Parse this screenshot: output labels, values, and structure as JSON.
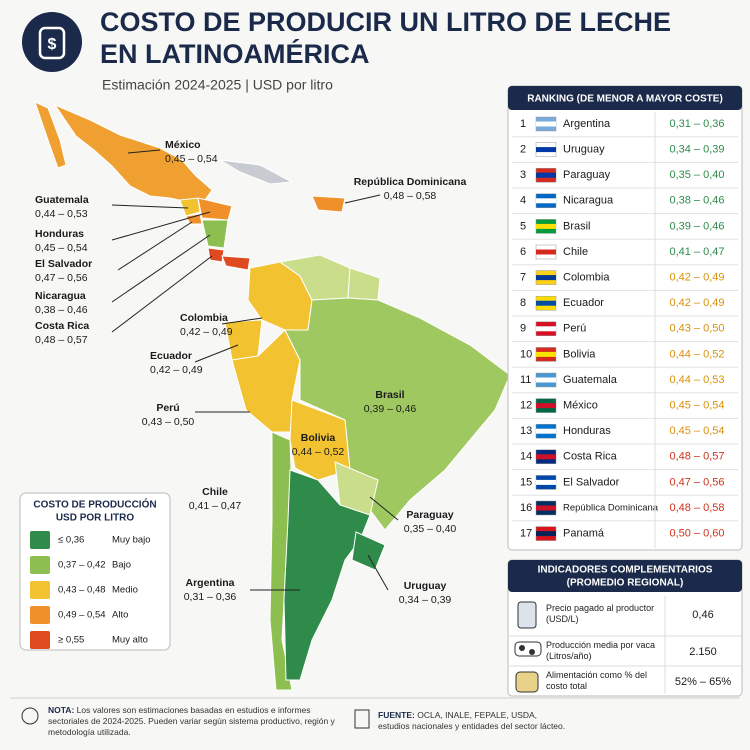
{
  "header": {
    "title_line1": "COSTO DE PRODUCIR UN LITRO DE LECHE",
    "title_line2": "EN LATINOAMÉRICA",
    "subtitle": "Estimación 2024-2025  |  USD por litro"
  },
  "map_labels": [
    {
      "name": "México",
      "range": "0,45 – 0,54"
    },
    {
      "name": "República Dominicana",
      "range": "0,48 – 0,58"
    },
    {
      "name": "Guatemala",
      "range": "0,44 – 0,53"
    },
    {
      "name": "Honduras",
      "range": "0,45 – 0,54"
    },
    {
      "name": "El Salvador",
      "range": "0,47 – 0,56"
    },
    {
      "name": "Nicaragua",
      "range": "0,38 – 0,46"
    },
    {
      "name": "Costa Rica",
      "range": "0,48 – 0,57"
    },
    {
      "name": "Colombia",
      "range": "0,42 – 0,49"
    },
    {
      "name": "Ecuador",
      "range": "0,42 – 0,49"
    },
    {
      "name": "Perú",
      "range": "0,43 – 0,50"
    },
    {
      "name": "Brasil",
      "range": "0,39 – 0,46"
    },
    {
      "name": "Bolivia",
      "range": "0,44 – 0,52"
    },
    {
      "name": "Chile",
      "range": "0,41 – 0,47"
    },
    {
      "name": "Paraguay",
      "range": "0,35 – 0,40"
    },
    {
      "name": "Argentina",
      "range": "0,31 – 0,36"
    },
    {
      "name": "Uruguay",
      "range": "0,34 – 0,39"
    }
  ],
  "legend": {
    "title_line1": "COSTO DE PRODUCCIÓN",
    "title_line2": "USD POR LITRO",
    "items": [
      {
        "range": "≤ 0,36",
        "label": "Muy bajo",
        "color": "#2e8b4a"
      },
      {
        "range": "0,37 – 0,42",
        "label": "Bajo",
        "color": "#8cbf50"
      },
      {
        "range": "0,43 – 0,48",
        "label": "Medio",
        "color": "#f2c230"
      },
      {
        "range": "0,49 – 0,54",
        "label": "Alto",
        "color": "#f0902a"
      },
      {
        "range": "≥ 0,55",
        "label": "Muy alto",
        "color": "#e04a20"
      }
    ]
  },
  "ranking": {
    "title": "RANKING (DE MENOR A MAYOR COSTE)",
    "rows": [
      {
        "rank": "1",
        "country": "Argentina",
        "range": "0,31 – 0,36",
        "color": "#2e8b4a"
      },
      {
        "rank": "2",
        "country": "Uruguay",
        "range": "0,34 – 0,39",
        "color": "#2e8b4a"
      },
      {
        "rank": "3",
        "country": "Paraguay",
        "range": "0,35 – 0,40",
        "color": "#2e8b4a"
      },
      {
        "rank": "4",
        "country": "Nicaragua",
        "range": "0,38 – 0,46",
        "color": "#2e8b4a"
      },
      {
        "rank": "5",
        "country": "Brasil",
        "range": "0,39 – 0,46",
        "color": "#2e8b4a"
      },
      {
        "rank": "6",
        "country": "Chile",
        "range": "0,41 – 0,47",
        "color": "#2e8b4a"
      },
      {
        "rank": "7",
        "country": "Colombia",
        "range": "0,42 – 0,49",
        "color": "#d9900a"
      },
      {
        "rank": "8",
        "country": "Ecuador",
        "range": "0,42 – 0,49",
        "color": "#d9900a"
      },
      {
        "rank": "9",
        "country": "Perú",
        "range": "0,43 – 0,50",
        "color": "#d9900a"
      },
      {
        "rank": "10",
        "country": "Bolivia",
        "range": "0,44 – 0,52",
        "color": "#d9900a"
      },
      {
        "rank": "11",
        "country": "Guatemala",
        "range": "0,44 – 0,53",
        "color": "#d9900a"
      },
      {
        "rank": "12",
        "country": "México",
        "range": "0,45 – 0,54",
        "color": "#d9900a"
      },
      {
        "rank": "13",
        "country": "Honduras",
        "range": "0,45 – 0,54",
        "color": "#d9900a"
      },
      {
        "rank": "14",
        "country": "Costa Rica",
        "range": "0,48 – 0,57",
        "color": "#d0331c"
      },
      {
        "rank": "15",
        "country": "El Salvador",
        "range": "0,47 – 0,56",
        "color": "#d0331c"
      },
      {
        "rank": "16",
        "country": "República Dominicana",
        "range": "0,48 – 0,58",
        "color": "#d0331c"
      },
      {
        "rank": "17",
        "country": "Panamá",
        "range": "0,50 – 0,60",
        "color": "#d0331c"
      }
    ]
  },
  "indicators": {
    "title_line1": "INDICADORES COMPLEMENTARIOS",
    "title_line2": "(PROMEDIO REGIONAL)",
    "rows": [
      {
        "label": "Precio pagado al productor (USD/L)",
        "value": "0,46"
      },
      {
        "label": "Producción media por vaca (Litros/año)",
        "value": "2.150"
      },
      {
        "label": "Alimentación como % del costo total",
        "value": "52% – 65%"
      }
    ]
  },
  "note": {
    "label": "NOTA:",
    "text": "Los valores son estimaciones basadas en estudios e informes sectoriales de 2024-2025. Pueden variar según sistema productivo, región y metodología utilizada."
  },
  "source": {
    "label": "FUENTE:",
    "text": "OCLA, INALE, FEPALE, USDA, estudios nacionales y entidades del sector lácteo."
  }
}
